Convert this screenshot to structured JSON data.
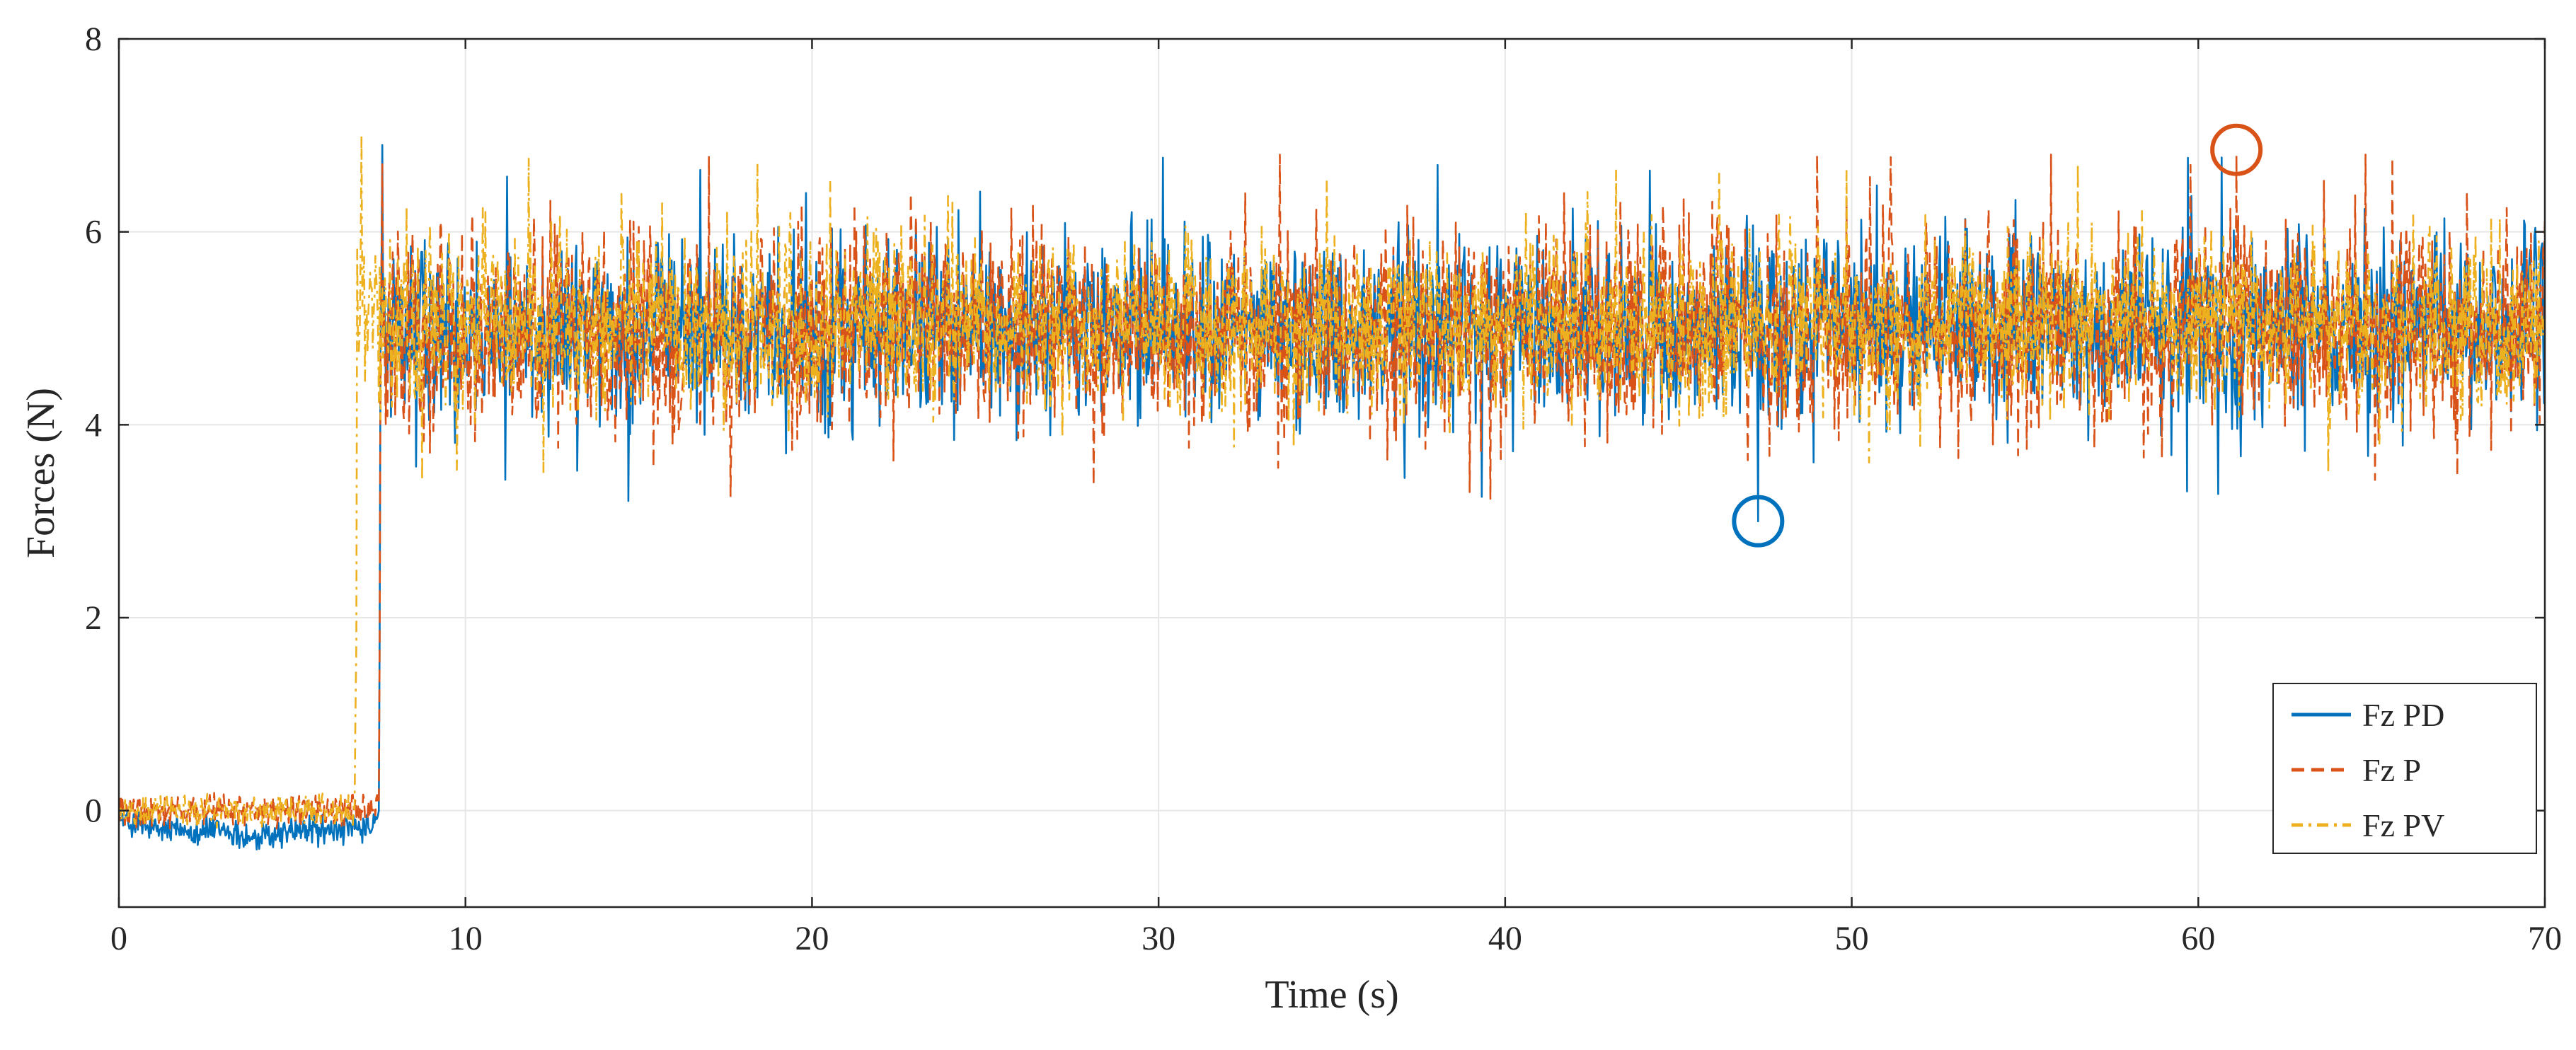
{
  "chart_data": {
    "type": "line",
    "title": "",
    "xlabel": "Time (s)",
    "ylabel": "Forces (N)",
    "xlim": [
      0,
      70
    ],
    "ylim": [
      -1,
      8
    ],
    "xticks": [
      0,
      10,
      20,
      30,
      40,
      50,
      60,
      70
    ],
    "yticks": [
      0,
      2,
      4,
      6,
      8
    ],
    "grid": true,
    "legend_position": "bottom-right",
    "series": [
      {
        "name": "Fz PD",
        "color": "#0072BD",
        "style": "solid",
        "x": [
          0,
          1,
          2,
          3,
          4,
          5,
          6,
          7,
          7.3,
          7.5,
          7.6,
          7.8,
          10,
          20,
          30,
          40,
          47.3,
          50,
          60,
          70
        ],
        "y": [
          -0.1,
          -0.2,
          -0.2,
          -0.2,
          -0.3,
          -0.2,
          -0.2,
          -0.2,
          -0.2,
          0.0,
          6.9,
          5.0,
          5.0,
          5.0,
          5.0,
          4.9,
          3.0,
          4.9,
          4.9,
          4.9
        ],
        "noise_band": [
          4.1,
          5.9
        ],
        "max_spike": 7.0,
        "min_spike": 3.0
      },
      {
        "name": "Fz P",
        "color": "#D95319",
        "style": "dashed",
        "x": [
          0,
          1,
          2,
          3,
          4,
          5,
          6,
          7,
          7.3,
          7.5,
          7.6,
          7.8,
          10,
          20,
          30,
          40,
          50,
          60,
          61.1,
          70
        ],
        "y": [
          0.0,
          0.0,
          0.0,
          0.0,
          0.0,
          0.0,
          0.0,
          0.0,
          0.0,
          0.1,
          6.7,
          5.0,
          5.0,
          5.0,
          5.0,
          5.0,
          5.0,
          5.0,
          6.8,
          5.0
        ],
        "noise_band": [
          4.0,
          6.0
        ],
        "max_spike": 6.8,
        "min_spike": 3.1
      },
      {
        "name": "Fz PV",
        "color": "#EDB120",
        "style": "dashdot",
        "x": [
          0,
          1,
          2,
          3,
          4,
          5,
          6,
          6.8,
          7.0,
          7.2,
          10,
          20,
          30,
          40,
          50,
          60,
          70
        ],
        "y": [
          0.0,
          0.0,
          0.0,
          0.0,
          0.0,
          0.0,
          0.0,
          0.0,
          7.0,
          5.0,
          5.0,
          5.0,
          5.0,
          5.0,
          5.0,
          5.0,
          5.0
        ],
        "noise_band": [
          4.2,
          5.9
        ],
        "max_spike": 7.0,
        "min_spike": 3.4
      }
    ],
    "annotations": [
      {
        "type": "circle",
        "x": 47.3,
        "y": 3.0,
        "color": "#0072BD"
      },
      {
        "type": "circle",
        "x": 61.1,
        "y": 6.85,
        "color": "#D95319"
      }
    ]
  }
}
